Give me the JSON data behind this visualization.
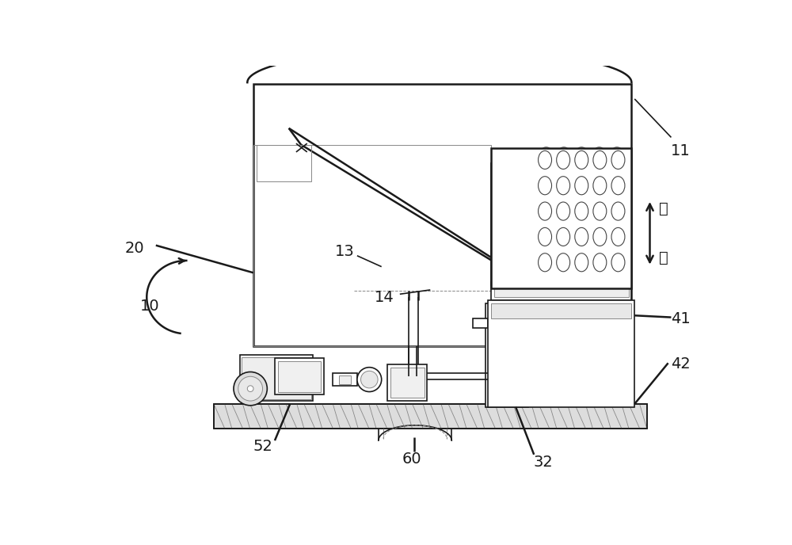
{
  "bg_color": "#ffffff",
  "line_color": "#1a1a1a",
  "gray_color": "#aaaaaa",
  "light_gray": "#cccccc",
  "mid_gray": "#888888",
  "figsize": [
    10.0,
    6.88
  ],
  "dpi": 100,
  "arrow_up_label": "上",
  "arrow_down_label": "下"
}
